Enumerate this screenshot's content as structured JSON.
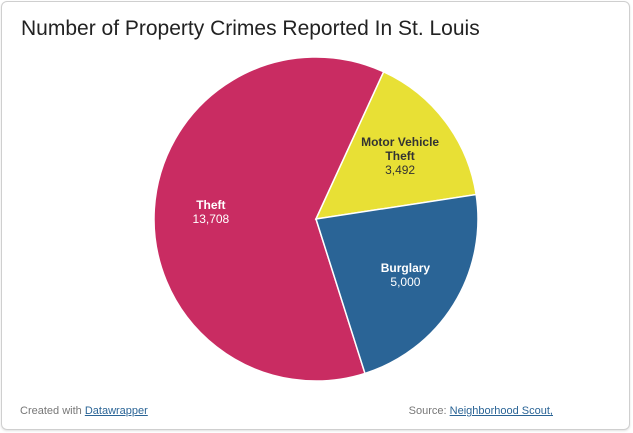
{
  "chart_data": {
    "type": "pie",
    "title": "Number of Property Crimes Reported In St. Louis",
    "categories": [
      "Theft",
      "Motor Vehicle Theft",
      "Burglary"
    ],
    "values": [
      13708,
      3492,
      5000
    ],
    "value_labels": [
      "13,708",
      "3,492",
      "5,000"
    ],
    "colors": [
      "#c92c62",
      "#e8e035",
      "#2a6496"
    ]
  },
  "footer": {
    "created_with": "Created with",
    "tool": "Datawrapper",
    "source_label": "Source:",
    "source": "Neighborhood Scout,"
  }
}
